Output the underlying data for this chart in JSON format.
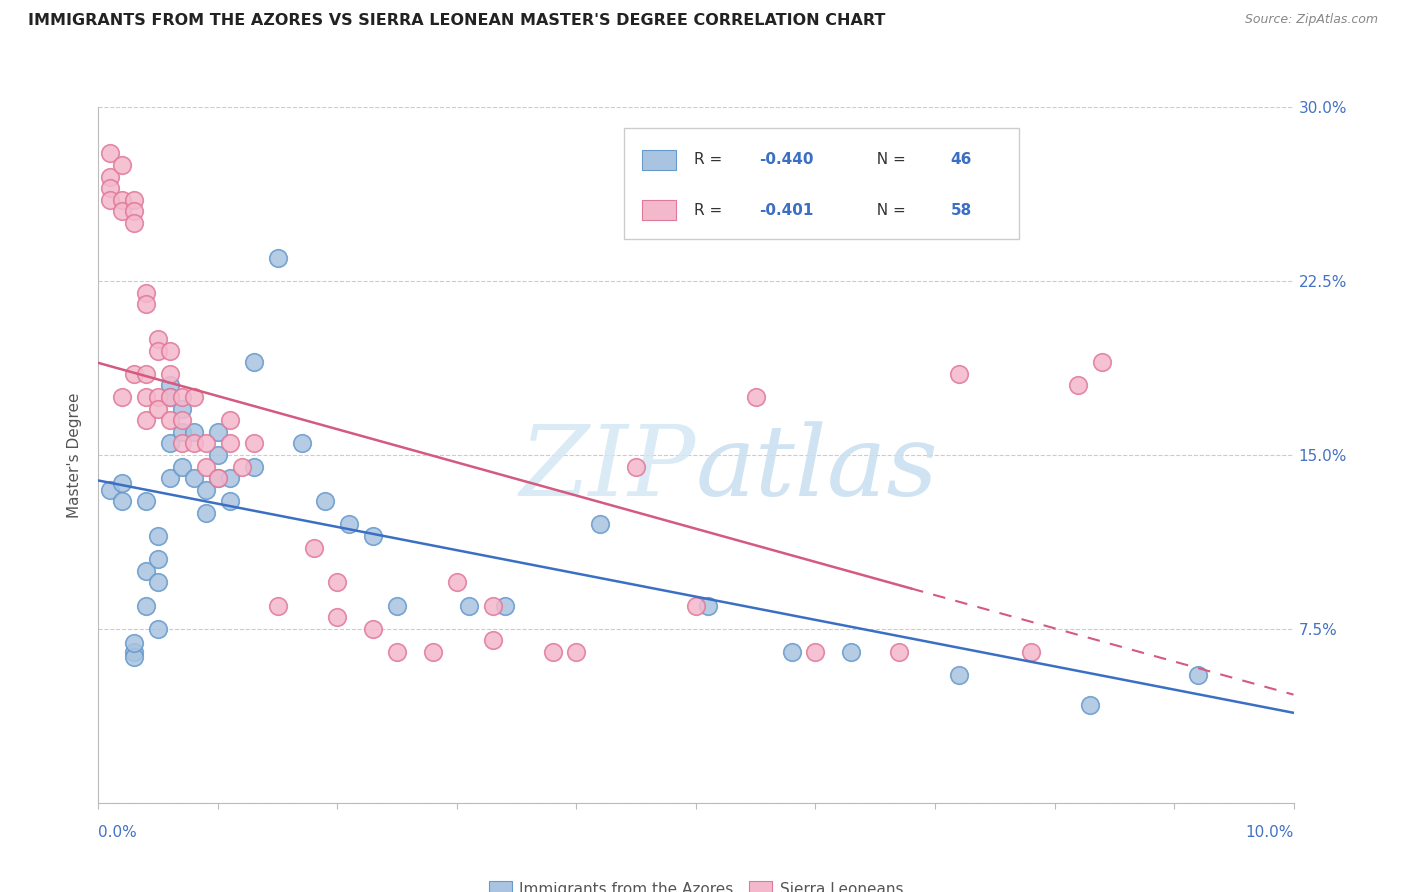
{
  "title": "IMMIGRANTS FROM THE AZORES VS SIERRA LEONEAN MASTER'S DEGREE CORRELATION CHART",
  "source": "Source: ZipAtlas.com",
  "ylabel": "Master's Degree",
  "xlim": [
    0.0,
    0.1
  ],
  "ylim": [
    0.0,
    0.3
  ],
  "blue_color": "#a8c4e0",
  "blue_edge_color": "#6699cc",
  "pink_color": "#f4b8cc",
  "pink_edge_color": "#e07898",
  "blue_line_color": "#3a6fc4",
  "pink_line_color": "#d45a80",
  "blue_R": -0.44,
  "blue_N": 46,
  "pink_R": -0.401,
  "pink_N": 58,
  "watermark_zip": "ZIP",
  "watermark_atlas": "atlas",
  "blue_scatter_x": [
    0.001,
    0.002,
    0.002,
    0.003,
    0.003,
    0.003,
    0.004,
    0.004,
    0.004,
    0.005,
    0.005,
    0.005,
    0.005,
    0.006,
    0.006,
    0.006,
    0.006,
    0.007,
    0.007,
    0.007,
    0.008,
    0.008,
    0.009,
    0.009,
    0.01,
    0.01,
    0.01,
    0.011,
    0.011,
    0.013,
    0.013,
    0.015,
    0.017,
    0.019,
    0.021,
    0.023,
    0.025,
    0.031,
    0.034,
    0.042,
    0.051,
    0.058,
    0.063,
    0.072,
    0.083,
    0.092
  ],
  "blue_scatter_y": [
    0.135,
    0.138,
    0.13,
    0.065,
    0.063,
    0.069,
    0.13,
    0.1,
    0.085,
    0.115,
    0.105,
    0.095,
    0.075,
    0.18,
    0.175,
    0.155,
    0.14,
    0.17,
    0.16,
    0.145,
    0.16,
    0.14,
    0.135,
    0.125,
    0.16,
    0.15,
    0.14,
    0.14,
    0.13,
    0.19,
    0.145,
    0.235,
    0.155,
    0.13,
    0.12,
    0.115,
    0.085,
    0.085,
    0.085,
    0.12,
    0.085,
    0.065,
    0.065,
    0.055,
    0.042,
    0.055
  ],
  "pink_scatter_x": [
    0.001,
    0.001,
    0.001,
    0.001,
    0.002,
    0.002,
    0.002,
    0.002,
    0.003,
    0.003,
    0.003,
    0.003,
    0.004,
    0.004,
    0.004,
    0.004,
    0.004,
    0.005,
    0.005,
    0.005,
    0.005,
    0.006,
    0.006,
    0.006,
    0.006,
    0.007,
    0.007,
    0.007,
    0.008,
    0.008,
    0.009,
    0.009,
    0.01,
    0.011,
    0.011,
    0.012,
    0.013,
    0.015,
    0.018,
    0.02,
    0.023,
    0.028,
    0.03,
    0.033,
    0.04,
    0.045,
    0.05,
    0.055,
    0.06,
    0.067,
    0.072,
    0.078,
    0.082,
    0.084,
    0.038,
    0.033,
    0.025,
    0.02
  ],
  "pink_scatter_y": [
    0.28,
    0.27,
    0.265,
    0.26,
    0.275,
    0.26,
    0.255,
    0.175,
    0.26,
    0.255,
    0.25,
    0.185,
    0.22,
    0.215,
    0.185,
    0.175,
    0.165,
    0.2,
    0.195,
    0.175,
    0.17,
    0.195,
    0.185,
    0.175,
    0.165,
    0.175,
    0.165,
    0.155,
    0.175,
    0.155,
    0.155,
    0.145,
    0.14,
    0.165,
    0.155,
    0.145,
    0.155,
    0.085,
    0.11,
    0.08,
    0.075,
    0.065,
    0.095,
    0.07,
    0.065,
    0.145,
    0.085,
    0.175,
    0.065,
    0.065,
    0.185,
    0.065,
    0.18,
    0.19,
    0.065,
    0.085,
    0.065,
    0.095
  ]
}
